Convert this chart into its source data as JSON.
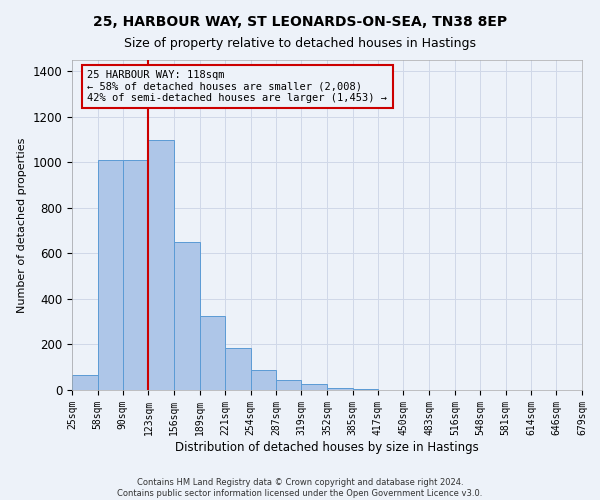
{
  "title": "25, HARBOUR WAY, ST LEONARDS-ON-SEA, TN38 8EP",
  "subtitle": "Size of property relative to detached houses in Hastings",
  "xlabel": "Distribution of detached houses by size in Hastings",
  "ylabel": "Number of detached properties",
  "footer_line1": "Contains HM Land Registry data © Crown copyright and database right 2024.",
  "footer_line2": "Contains public sector information licensed under the Open Government Licence v3.0.",
  "bar_edges": [
    25,
    58,
    90,
    123,
    156,
    189,
    221,
    254,
    287,
    319,
    352,
    385,
    417,
    450,
    483,
    516,
    548,
    581,
    614,
    646,
    679
  ],
  "bar_heights": [
    65,
    1010,
    1010,
    1100,
    650,
    325,
    185,
    90,
    45,
    25,
    10,
    5,
    2,
    2,
    1,
    1,
    0,
    0,
    0,
    0
  ],
  "bar_color": "#aec6e8",
  "bar_edgecolor": "#5b9bd5",
  "property_line_x": 123,
  "ylim": [
    0,
    1450
  ],
  "yticks": [
    0,
    200,
    400,
    600,
    800,
    1000,
    1200,
    1400
  ],
  "annotation_text": "25 HARBOUR WAY: 118sqm\n← 58% of detached houses are smaller (2,008)\n42% of semi-detached houses are larger (1,453) →",
  "red_line_color": "#cc0000",
  "grid_color": "#d0d8e8",
  "background_color": "#edf2f9",
  "title_fontsize": 10,
  "subtitle_fontsize": 9,
  "ylabel_fontsize": 8,
  "xlabel_fontsize": 8.5,
  "tick_label_fontsize": 7,
  "annotation_fontsize": 7.5
}
